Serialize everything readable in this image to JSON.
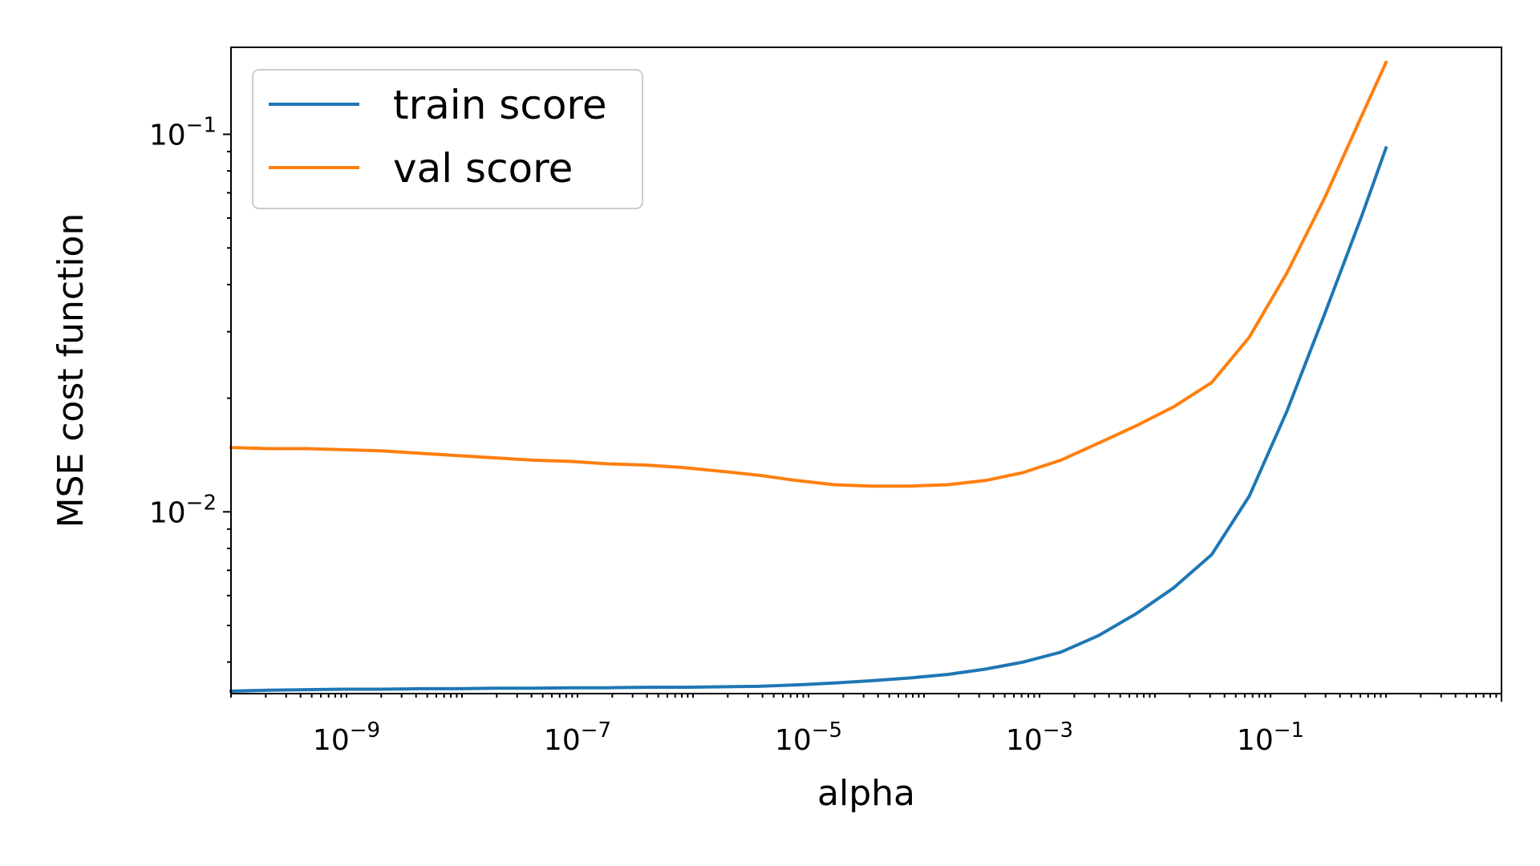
{
  "chart_data": {
    "type": "line",
    "xlabel": "alpha",
    "ylabel": "MSE cost function",
    "xscale": "log",
    "yscale": "log",
    "xlim": [
      1e-10,
      10
    ],
    "ylim": [
      0.0033,
      0.17
    ],
    "grid": false,
    "legend_position": "top-left",
    "xticks": [
      {
        "base": "10",
        "exp": "−9",
        "value": 1e-09
      },
      {
        "base": "10",
        "exp": "−7",
        "value": 1e-07
      },
      {
        "base": "10",
        "exp": "−5",
        "value": 1e-05
      },
      {
        "base": "10",
        "exp": "−3",
        "value": 0.001
      },
      {
        "base": "10",
        "exp": "−1",
        "value": 0.1
      }
    ],
    "yticks": [
      {
        "base": "10",
        "exp": "−2",
        "value": 0.01
      },
      {
        "base": "10",
        "exp": "−1",
        "value": 0.1
      }
    ],
    "x": [
      1e-10,
      2.12e-10,
      4.5e-10,
      9.54e-10,
      2.02e-09,
      4.29e-09,
      9.1e-09,
      1.93e-08,
      4.09e-08,
      8.69e-08,
      1.84e-07,
      3.91e-07,
      8.29e-07,
      1.76e-06,
      3.73e-06,
      7.91e-06,
      1.68e-05,
      3.56e-05,
      7.54e-05,
      0.00016,
      0.000339,
      0.00072,
      0.00153,
      0.00324,
      0.00687,
      0.0146,
      0.0309,
      0.0655,
      0.139,
      0.295,
      0.625,
      1.0
    ],
    "series": [
      {
        "name": "train score",
        "color": "#1f77b4",
        "values": [
          0.00335,
          0.00337,
          0.00338,
          0.00339,
          0.00339,
          0.0034,
          0.0034,
          0.00341,
          0.00341,
          0.00342,
          0.00342,
          0.00343,
          0.00343,
          0.00344,
          0.00345,
          0.00348,
          0.00352,
          0.00357,
          0.00363,
          0.00371,
          0.00383,
          0.004,
          0.00425,
          0.0047,
          0.00537,
          0.0063,
          0.0077,
          0.011,
          0.0185,
          0.0335,
          0.0615,
          0.092
        ]
      },
      {
        "name": "val score",
        "color": "#ff7f0e",
        "values": [
          0.0148,
          0.0147,
          0.0147,
          0.0146,
          0.0145,
          0.0143,
          0.0141,
          0.0139,
          0.0137,
          0.0136,
          0.0134,
          0.0133,
          0.0131,
          0.0128,
          0.0125,
          0.0121,
          0.0118,
          0.0117,
          0.0117,
          0.0118,
          0.0121,
          0.0127,
          0.0137,
          0.0152,
          0.0169,
          0.019,
          0.022,
          0.029,
          0.043,
          0.068,
          0.113,
          0.155
        ]
      }
    ]
  }
}
